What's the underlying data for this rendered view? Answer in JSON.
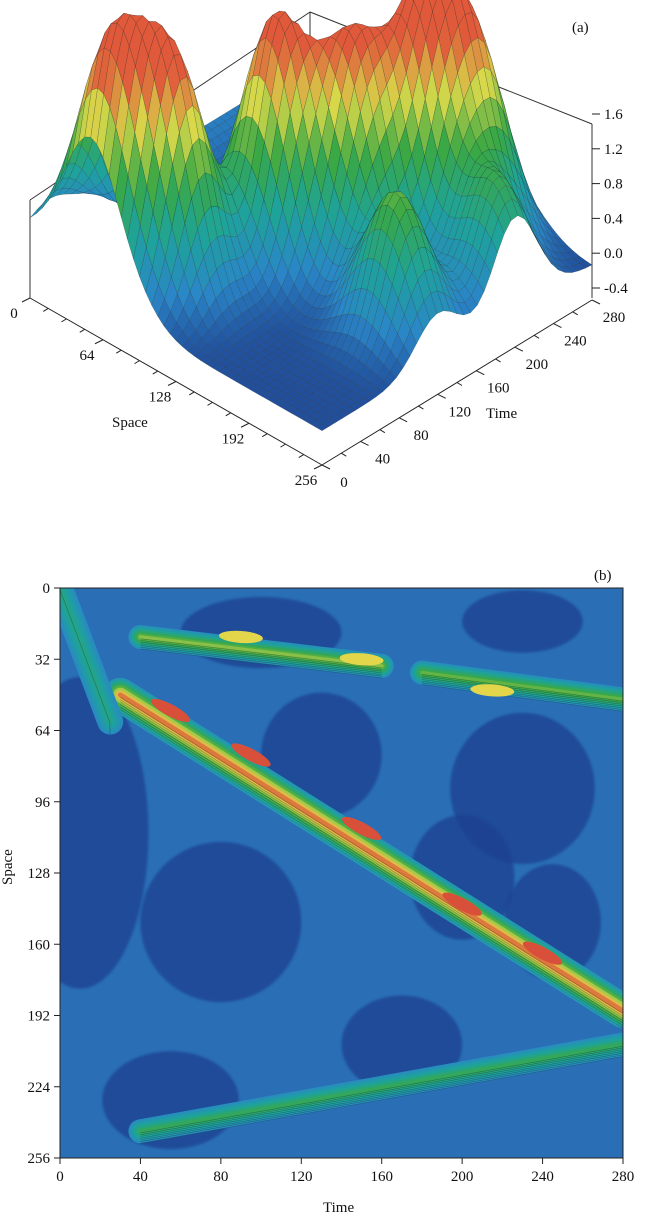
{
  "chart_data": [
    {
      "type": "surface",
      "panel_label": "(a)",
      "x_axis": {
        "label": "Space",
        "ticks": [
          "0",
          "64",
          "128",
          "192",
          "256"
        ],
        "range": [
          0,
          256
        ]
      },
      "y_axis": {
        "label": "Time",
        "ticks": [
          "0",
          "40",
          "80",
          "120",
          "160",
          "200",
          "240",
          "280"
        ],
        "range": [
          0,
          280
        ]
      },
      "z_axis": {
        "label": "",
        "ticks": [
          "-0.4",
          "0.0",
          "0.4",
          "0.8",
          "1.2",
          "1.6"
        ],
        "range": [
          -0.4,
          1.6
        ]
      },
      "colormap": [
        "#1f3f8f",
        "#2a86c8",
        "#1ea39a",
        "#3aa844",
        "#d8d84a",
        "#e0593a"
      ],
      "peaks": [
        {
          "space": 52,
          "time": 20,
          "value": 1.45
        },
        {
          "space": 88,
          "time": 48,
          "value": 1.35
        },
        {
          "space": 112,
          "time": 120,
          "value": 1.55
        },
        {
          "space": 150,
          "time": 158,
          "value": 1.3
        },
        {
          "space": 168,
          "time": 205,
          "value": 1.4
        },
        {
          "space": 188,
          "time": 240,
          "value": 1.1
        },
        {
          "space": 220,
          "time": 120,
          "value": 0.8
        },
        {
          "space": 240,
          "time": 200,
          "value": 0.6
        }
      ]
    },
    {
      "type": "heatmap",
      "panel_label": "(b)",
      "xlabel": "Time",
      "ylabel": "Space",
      "xticks": [
        "0",
        "40",
        "80",
        "120",
        "160",
        "200",
        "240",
        "280"
      ],
      "yticks": [
        "0",
        "32",
        "64",
        "96",
        "128",
        "160",
        "192",
        "224",
        "256"
      ],
      "xlim": [
        0,
        280
      ],
      "ylim": [
        0,
        256
      ],
      "colormap": [
        "#1f3f8f",
        "#2a86c8",
        "#1ea39a",
        "#3aa844",
        "#d8d84a",
        "#e0593a"
      ],
      "features": [
        {
          "kind": "main-diagonal-soliton",
          "from": {
            "time": 30,
            "space": 48
          },
          "to": {
            "time": 280,
            "space": 190
          },
          "peak_value": 1.5
        },
        {
          "kind": "upper-ridge",
          "from": {
            "time": 40,
            "space": 22
          },
          "to": {
            "time": 160,
            "space": 35
          },
          "peak_value": 1.0
        },
        {
          "kind": "upper-ridge",
          "from": {
            "time": 180,
            "space": 38
          },
          "to": {
            "time": 280,
            "space": 50
          },
          "peak_value": 0.9
        },
        {
          "kind": "lower-ridge",
          "from": {
            "time": 40,
            "space": 244
          },
          "to": {
            "time": 280,
            "space": 205
          },
          "peak_value": 0.7
        },
        {
          "kind": "left-strip",
          "from": {
            "time": 0,
            "space": 0
          },
          "to": {
            "time": 25,
            "space": 60
          },
          "peak_value": 0.5
        }
      ]
    }
  ]
}
